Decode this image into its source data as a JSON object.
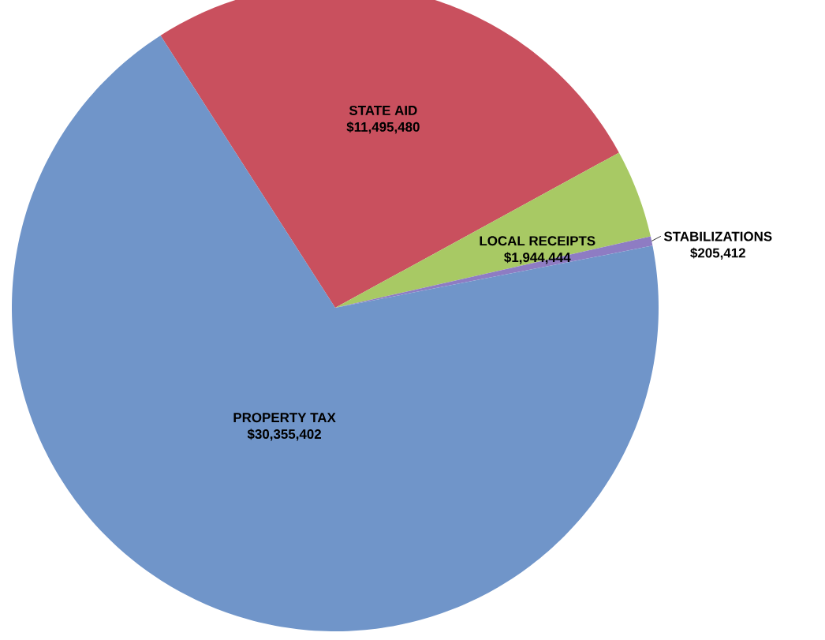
{
  "chart_data": {
    "type": "pie",
    "categories": [
      "STATE AID",
      "LOCAL RECEIPTS",
      "STABILIZATIONS",
      "PROPERTY TAX"
    ],
    "values": [
      11495480,
      1944444,
      205412,
      30355402
    ],
    "value_labels": [
      "$11,495,480",
      "$1,944,444",
      "$205,412",
      "$30,355,402"
    ],
    "colors": [
      "#c9505e",
      "#a8c964",
      "#8e7cc3",
      "#7095c9"
    ]
  }
}
